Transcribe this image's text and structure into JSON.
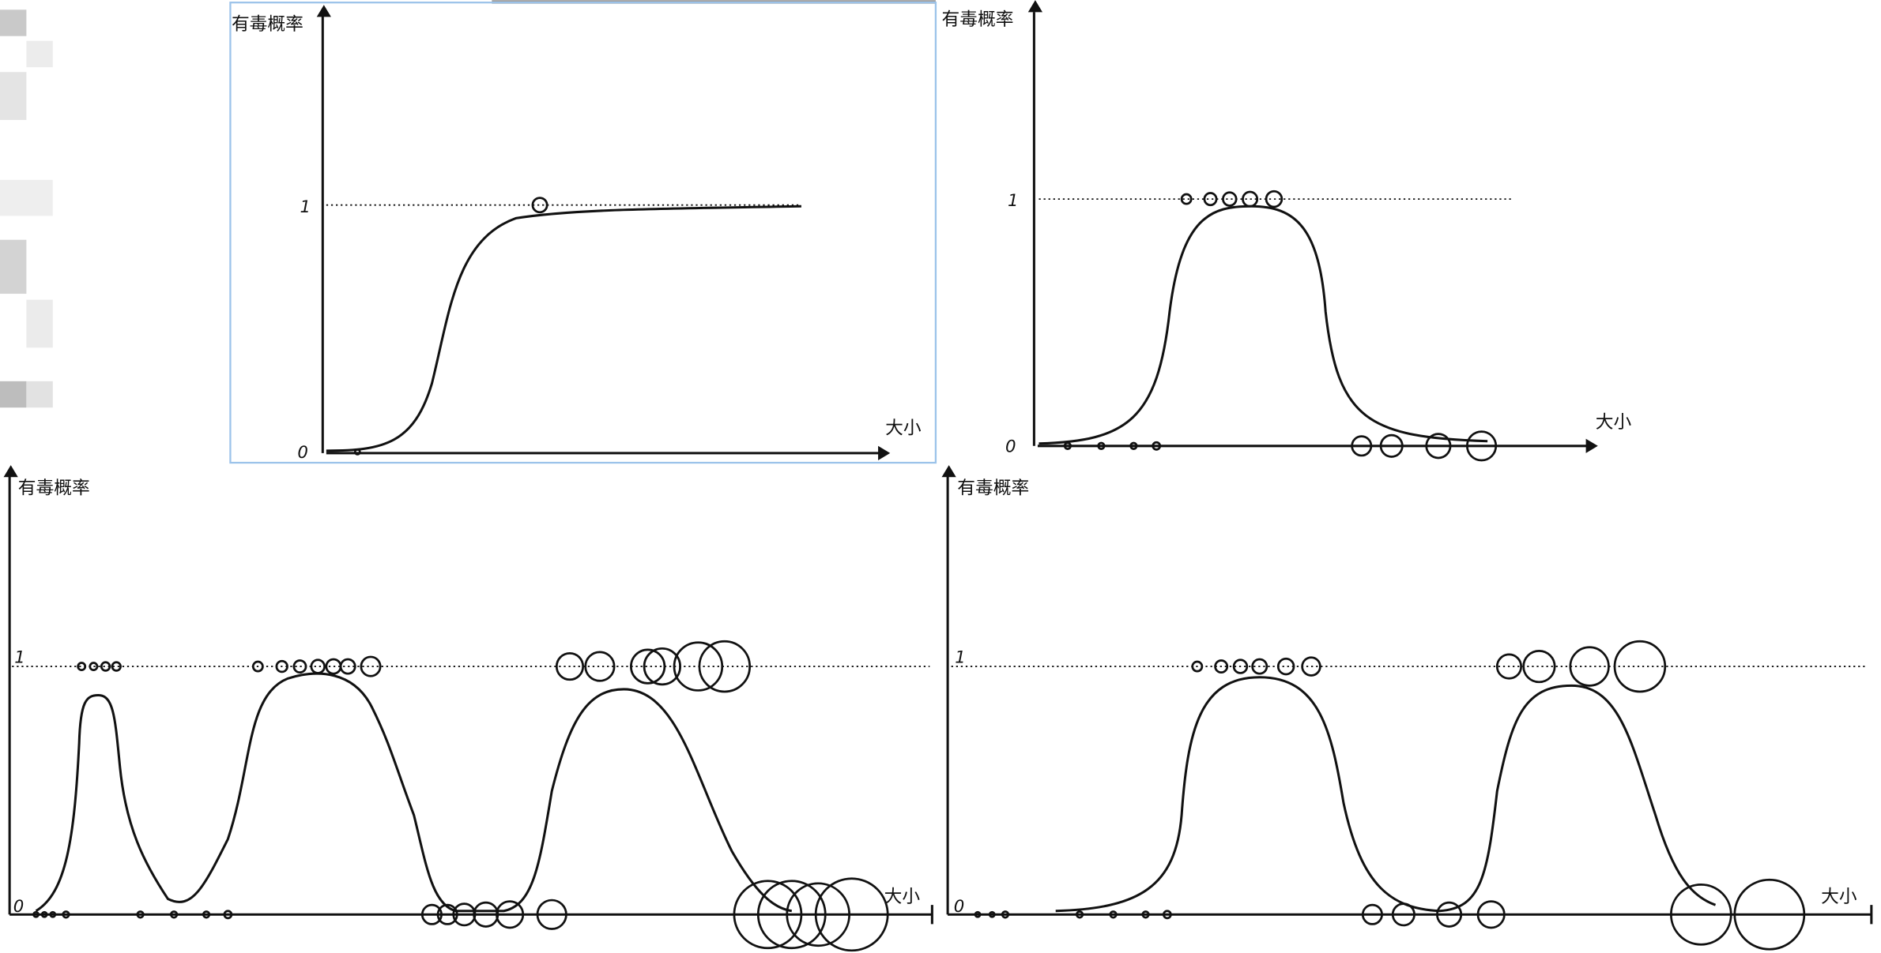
{
  "panels": [
    {
      "y_label": "有毒概率",
      "x_label": "大小",
      "tick_one": 1,
      "tick_zero": 0
    },
    {
      "y_label": "有毒概率",
      "x_label": "大小",
      "tick_one": 1,
      "tick_zero": 0
    },
    {
      "y_label": "有毒概率",
      "x_label": "大小",
      "tick_one": 1,
      "tick_zero": 0
    },
    {
      "y_label": "有毒概率",
      "x_label": "大小",
      "tick_one": 1,
      "tick_zero": 0
    }
  ]
}
